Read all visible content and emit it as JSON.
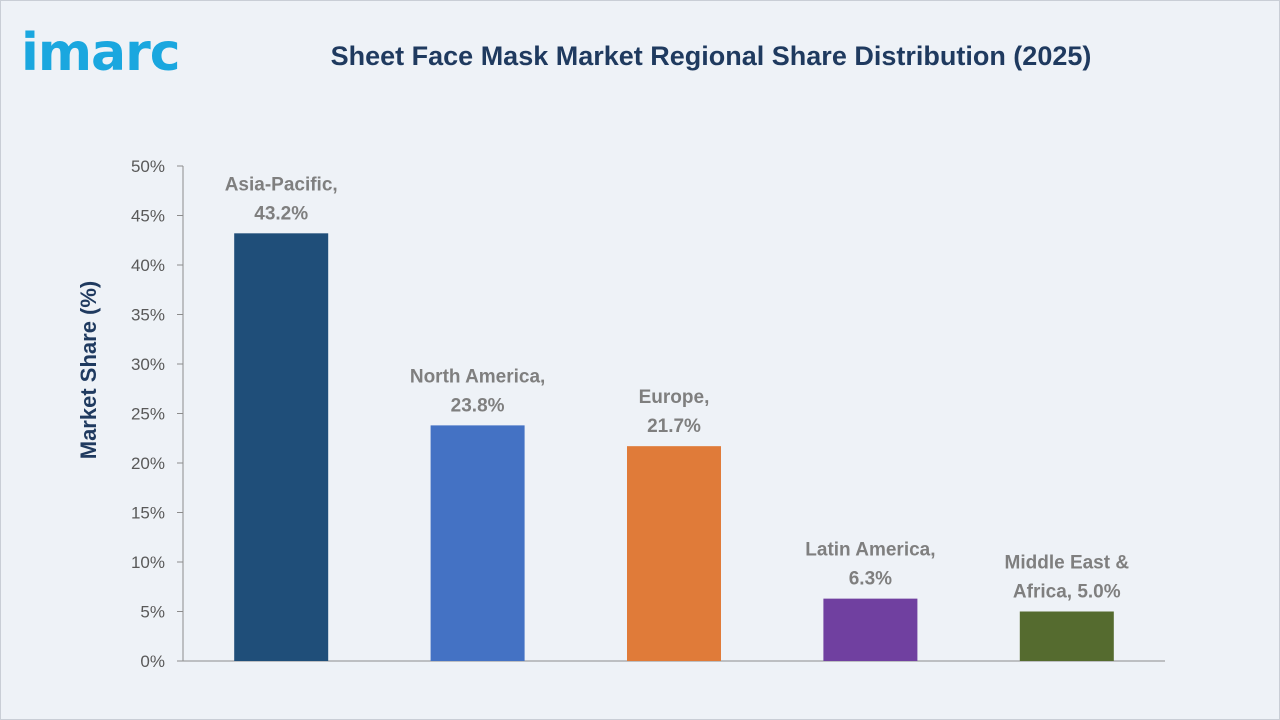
{
  "brand": {
    "logo_text": "imarc"
  },
  "chart_data": {
    "type": "bar",
    "title": "Sheet Face Mask Market Regional Share Distribution (2025)",
    "ylabel": "Market Share (%)",
    "xlabel": "",
    "ylim": [
      0,
      50
    ],
    "yticks": [
      "0%",
      "5%",
      "10%",
      "15%",
      "20%",
      "25%",
      "30%",
      "35%",
      "40%",
      "45%",
      "50%"
    ],
    "categories": [
      "Asia-Pacific",
      "North America",
      "Europe",
      "Latin America",
      "Middle East & Africa"
    ],
    "values": [
      43.2,
      23.8,
      21.7,
      6.3,
      5.0
    ],
    "data_labels": [
      [
        "Asia-Pacific,",
        "43.2%"
      ],
      [
        "North America,",
        "23.8%"
      ],
      [
        "Europe,",
        "21.7%"
      ],
      [
        "Latin America,",
        "6.3%"
      ],
      [
        "Middle East &",
        "Africa, 5.0%"
      ]
    ],
    "colors": [
      "#1f4e79",
      "#4472c4",
      "#e07b39",
      "#7040a0",
      "#556b2f"
    ],
    "grid": false,
    "legend": "none"
  }
}
